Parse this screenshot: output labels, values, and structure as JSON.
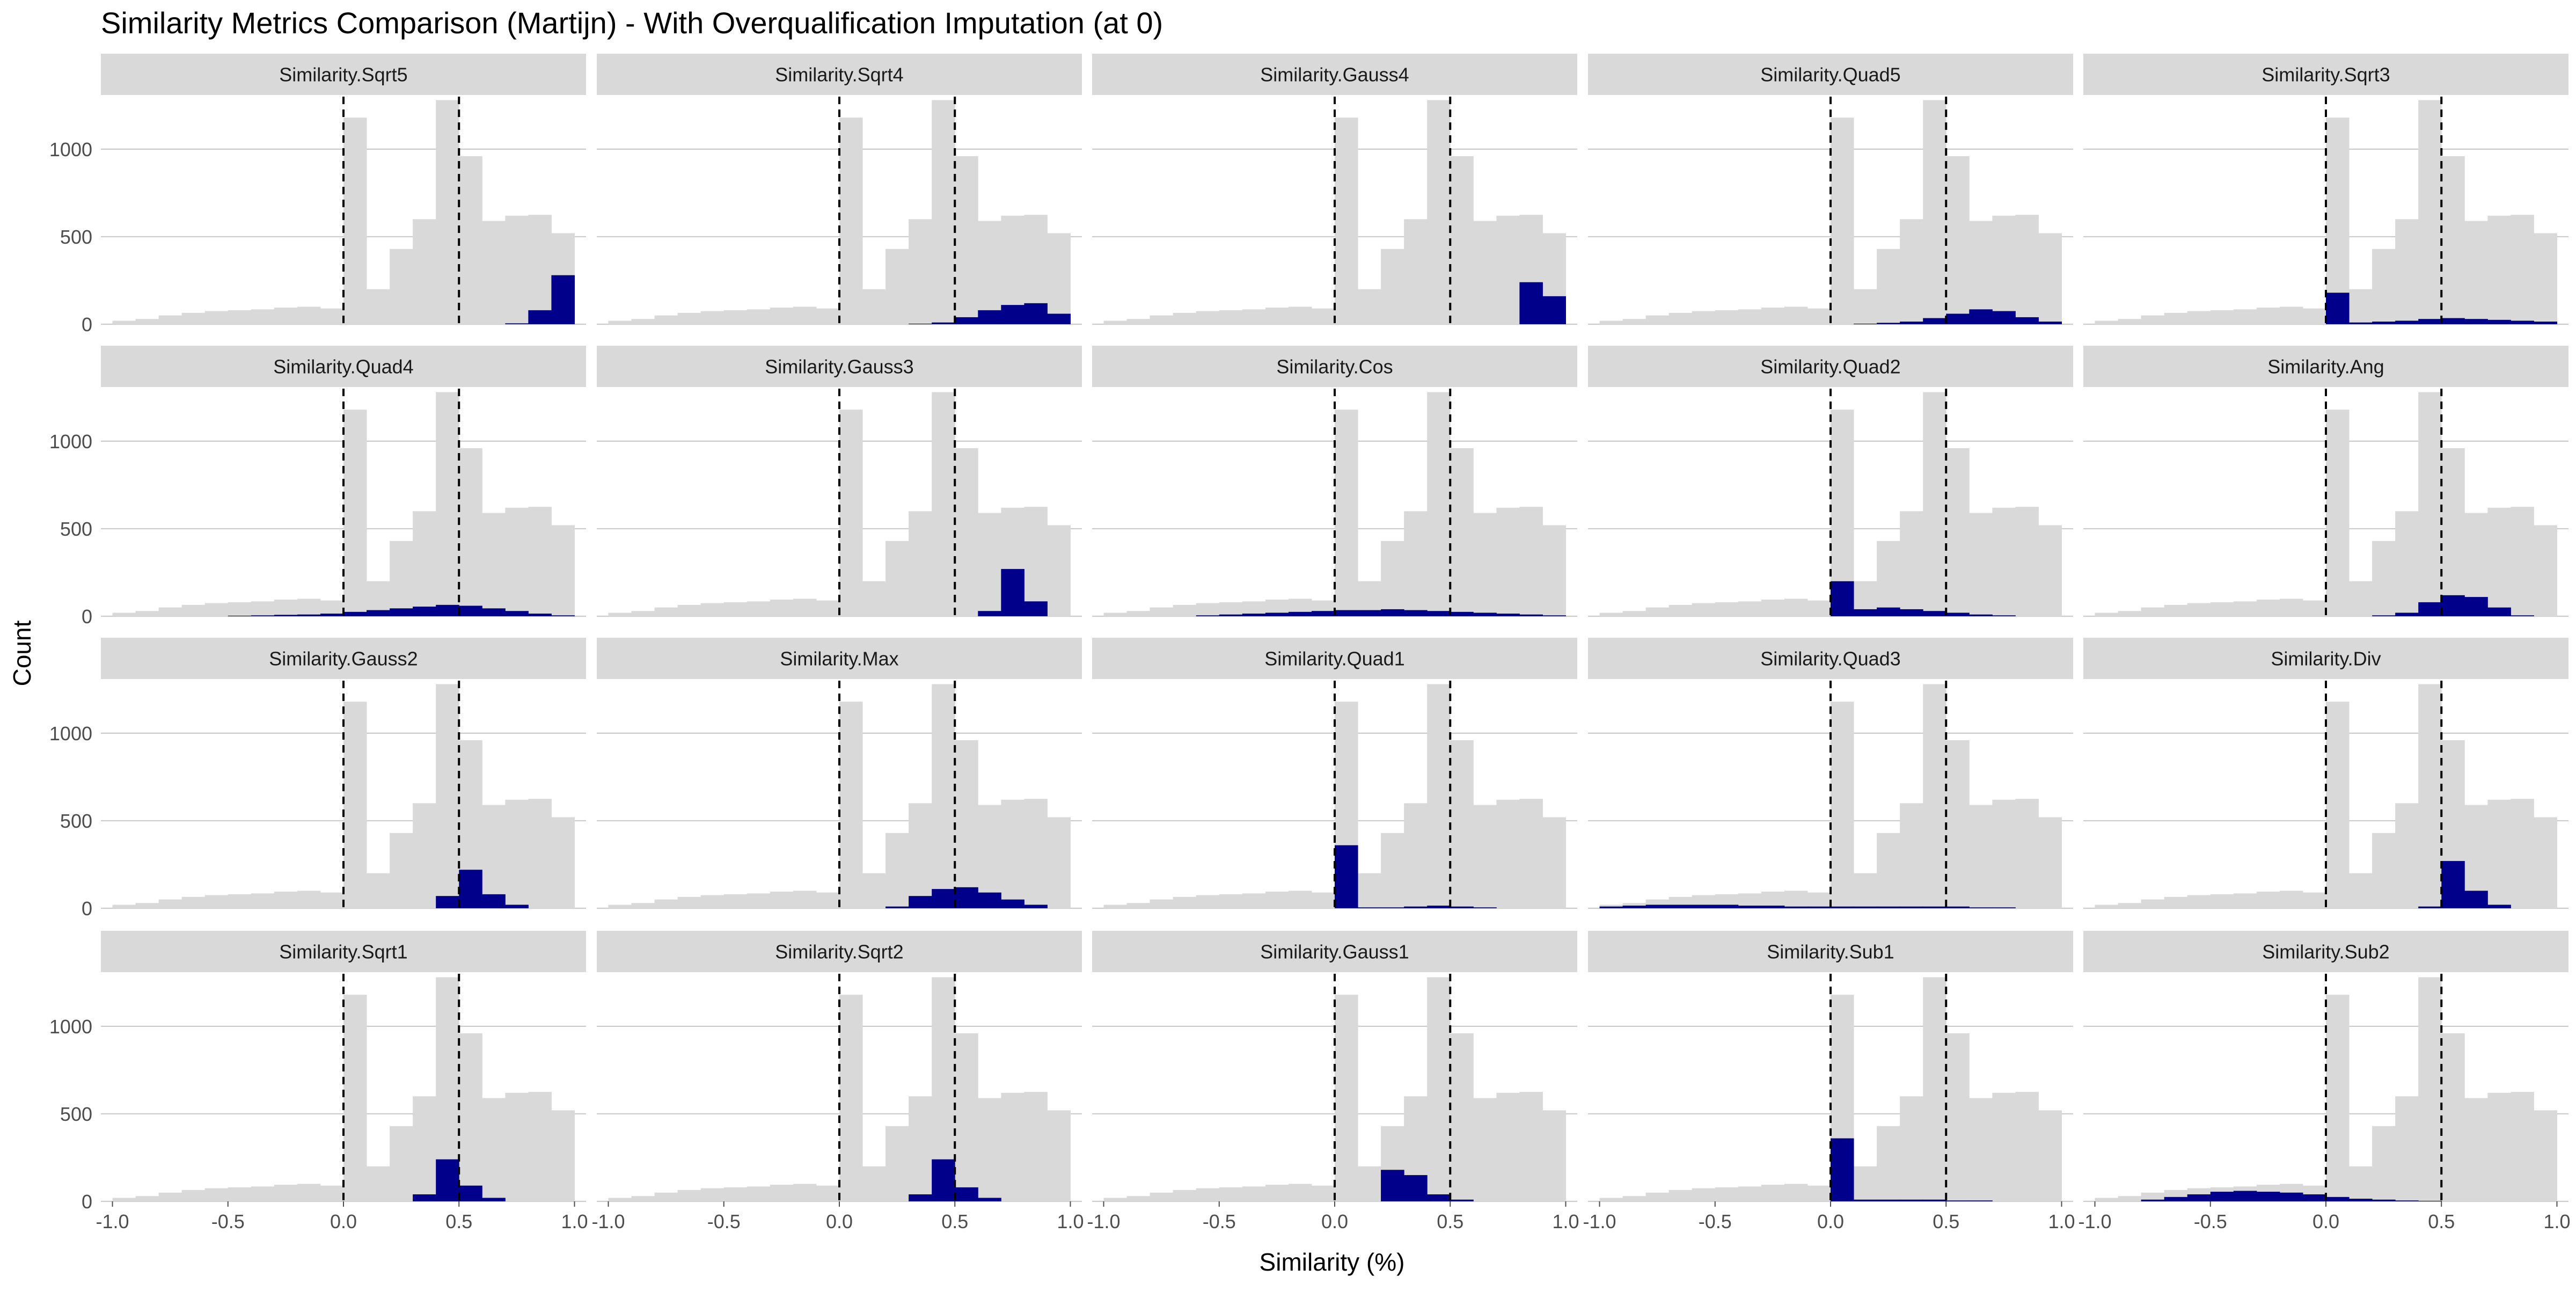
{
  "title": "Similarity Metrics Comparison (Martijn) - With Overqualification Imputation (at 0)",
  "xlabel": "Similarity (%)",
  "ylabel": "Count",
  "colors": {
    "background_hist": "#d9d9d9",
    "highlight_hist": "#00008b",
    "strip": "#d9d9d9",
    "grid": "#cccccc",
    "vline": "#000000"
  },
  "chart_data": {
    "type": "bar",
    "layout": "facet-grid 4x5",
    "xlim": [
      -1.05,
      1.05
    ],
    "ylim": [
      0,
      1300
    ],
    "x_ticks": [
      -1.0,
      -0.5,
      0.0,
      0.5,
      1.0
    ],
    "x_tick_labels": [
      "-1.0",
      "-0.5",
      "0.0",
      "0.5",
      "1.0"
    ],
    "y_ticks": [
      0,
      500,
      1000
    ],
    "y_tick_labels": [
      "0",
      "500",
      "1000"
    ],
    "reference_lines": [
      0,
      0.5
    ],
    "grid": "horizontal major",
    "bin_width": 0.1,
    "bins": [
      -0.95,
      -0.85,
      -0.75,
      -0.65,
      -0.55,
      -0.45,
      -0.35,
      -0.25,
      -0.15,
      -0.05,
      0.05,
      0.15,
      0.25,
      0.35,
      0.45,
      0.55,
      0.65,
      0.75,
      0.85,
      0.95
    ],
    "background_counts": [
      20,
      30,
      50,
      65,
      75,
      80,
      85,
      95,
      100,
      90,
      1180,
      200,
      430,
      600,
      1280,
      960,
      590,
      620,
      625,
      520
    ],
    "panels": [
      {
        "name": "Similarity.Sqrt5",
        "counts": [
          0,
          0,
          0,
          0,
          0,
          0,
          0,
          0,
          0,
          0,
          0,
          0,
          0,
          0,
          0,
          0,
          0,
          5,
          80,
          280
        ]
      },
      {
        "name": "Similarity.Sqrt4",
        "counts": [
          0,
          0,
          0,
          0,
          0,
          0,
          0,
          0,
          0,
          0,
          0,
          0,
          0,
          3,
          10,
          40,
          80,
          110,
          120,
          60
        ]
      },
      {
        "name": "Similarity.Gauss4",
        "counts": [
          0,
          0,
          0,
          0,
          0,
          0,
          0,
          0,
          0,
          0,
          0,
          0,
          0,
          0,
          0,
          0,
          0,
          0,
          240,
          160
        ]
      },
      {
        "name": "Similarity.Quad5",
        "counts": [
          0,
          0,
          0,
          0,
          0,
          0,
          0,
          0,
          0,
          0,
          0,
          3,
          8,
          15,
          35,
          60,
          85,
          75,
          40,
          15
        ]
      },
      {
        "name": "Similarity.Sqrt3",
        "counts": [
          0,
          0,
          0,
          0,
          0,
          0,
          0,
          0,
          0,
          0,
          180,
          10,
          15,
          20,
          30,
          35,
          30,
          25,
          20,
          15
        ]
      },
      {
        "name": "Similarity.Quad4",
        "counts": [
          0,
          0,
          0,
          0,
          0,
          3,
          5,
          8,
          10,
          15,
          25,
          35,
          45,
          55,
          65,
          60,
          45,
          30,
          15,
          5
        ]
      },
      {
        "name": "Similarity.Gauss3",
        "counts": [
          0,
          0,
          0,
          0,
          0,
          0,
          0,
          0,
          0,
          0,
          0,
          0,
          0,
          0,
          0,
          0,
          30,
          270,
          85,
          0
        ]
      },
      {
        "name": "Similarity.Cos",
        "counts": [
          0,
          0,
          0,
          0,
          5,
          10,
          15,
          20,
          25,
          30,
          35,
          35,
          40,
          35,
          30,
          25,
          20,
          15,
          10,
          5
        ]
      },
      {
        "name": "Similarity.Quad2",
        "counts": [
          0,
          0,
          0,
          0,
          0,
          0,
          0,
          0,
          0,
          0,
          200,
          40,
          50,
          40,
          30,
          20,
          10,
          5,
          0,
          0
        ]
      },
      {
        "name": "Similarity.Ang",
        "counts": [
          0,
          0,
          0,
          0,
          0,
          0,
          0,
          0,
          0,
          0,
          0,
          0,
          5,
          20,
          80,
          120,
          110,
          50,
          5,
          0
        ]
      },
      {
        "name": "Similarity.Gauss2",
        "counts": [
          0,
          0,
          0,
          0,
          0,
          0,
          0,
          0,
          0,
          0,
          0,
          0,
          0,
          0,
          70,
          220,
          80,
          20,
          0,
          0
        ]
      },
      {
        "name": "Similarity.Max",
        "counts": [
          0,
          0,
          0,
          0,
          0,
          0,
          0,
          0,
          0,
          0,
          0,
          0,
          10,
          70,
          110,
          120,
          90,
          50,
          20,
          0
        ]
      },
      {
        "name": "Similarity.Quad1",
        "counts": [
          0,
          0,
          0,
          0,
          0,
          0,
          0,
          0,
          0,
          0,
          360,
          5,
          5,
          10,
          15,
          10,
          5,
          0,
          0,
          0
        ]
      },
      {
        "name": "Similarity.Quad3",
        "counts": [
          10,
          15,
          20,
          20,
          20,
          20,
          15,
          15,
          10,
          10,
          10,
          10,
          10,
          10,
          10,
          10,
          5,
          5,
          0,
          0
        ]
      },
      {
        "name": "Similarity.Div",
        "counts": [
          0,
          0,
          0,
          0,
          0,
          0,
          0,
          0,
          0,
          0,
          0,
          0,
          0,
          0,
          10,
          270,
          100,
          20,
          0,
          0
        ]
      },
      {
        "name": "Similarity.Sqrt1",
        "counts": [
          0,
          0,
          0,
          0,
          0,
          0,
          0,
          0,
          0,
          0,
          0,
          0,
          0,
          40,
          240,
          90,
          20,
          0,
          0,
          0
        ]
      },
      {
        "name": "Similarity.Sqrt2",
        "counts": [
          0,
          0,
          0,
          0,
          0,
          0,
          0,
          0,
          0,
          0,
          0,
          0,
          0,
          40,
          240,
          80,
          20,
          0,
          0,
          0
        ]
      },
      {
        "name": "Similarity.Gauss1",
        "counts": [
          0,
          0,
          0,
          0,
          0,
          0,
          0,
          0,
          0,
          0,
          0,
          0,
          180,
          150,
          40,
          10,
          0,
          0,
          0,
          0
        ]
      },
      {
        "name": "Similarity.Sub1",
        "counts": [
          0,
          0,
          0,
          0,
          0,
          0,
          0,
          0,
          0,
          0,
          360,
          10,
          10,
          10,
          10,
          5,
          5,
          0,
          0,
          0
        ]
      },
      {
        "name": "Similarity.Sub2",
        "counts": [
          0,
          0,
          10,
          25,
          40,
          55,
          60,
          55,
          50,
          40,
          25,
          15,
          10,
          5,
          3,
          0,
          0,
          0,
          0,
          0
        ]
      }
    ]
  }
}
